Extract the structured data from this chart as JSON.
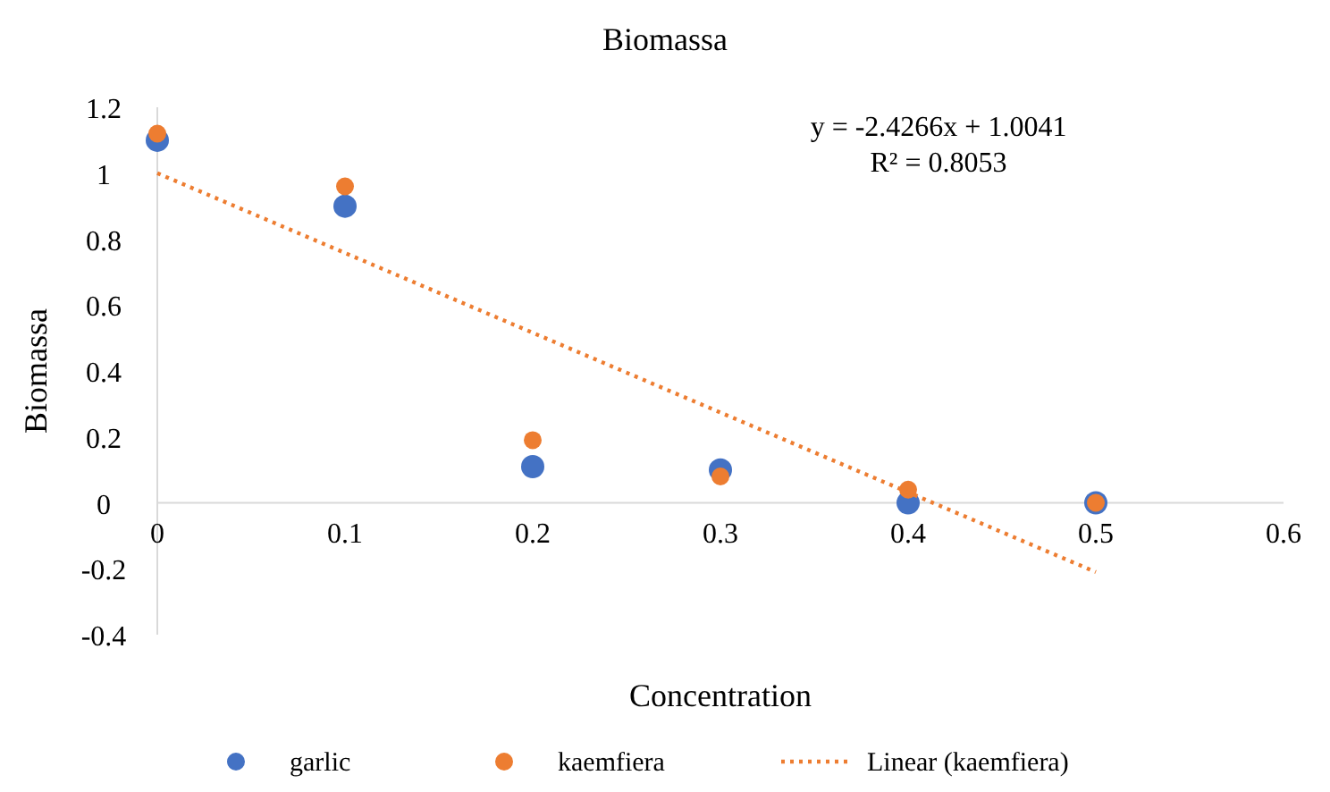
{
  "chart_data": {
    "type": "scatter",
    "title": "Biomassa",
    "xlabel": "Concentration",
    "ylabel": "Biomassa",
    "x": [
      0,
      0.1,
      0.2,
      0.3,
      0.4,
      0.5
    ],
    "series": [
      {
        "name": "garlic",
        "color": "#4472c4",
        "values": [
          1.1,
          0.9,
          0.11,
          0.1,
          0,
          0
        ]
      },
      {
        "name": "kaemfiera",
        "color": "#ed7d31",
        "values": [
          1.12,
          0.96,
          0.19,
          0.08,
          0.04,
          0
        ]
      },
      {
        "name": "Linear (kaemfiera)",
        "type": "line",
        "line_style": "dotted",
        "marker": "none",
        "color": "#ed7d31",
        "x": [
          0,
          0.5
        ],
        "values": [
          1,
          -0.21
        ]
      }
    ],
    "xlim": [
      0,
      0.6
    ],
    "xticks": [
      0,
      0.1,
      0.2,
      0.3,
      0.4,
      0.5,
      0.6
    ],
    "ylim": [
      -0.4,
      1.2
    ],
    "yticks": [
      -0.4,
      -0.2,
      0,
      0.2,
      0.4,
      0.6,
      0.8,
      1,
      1.2
    ],
    "marker": "circle",
    "grid": false,
    "legend": "bottom",
    "annotations": [
      "y = -2.4266x + 1.0041",
      "R² = 0.8053"
    ]
  }
}
